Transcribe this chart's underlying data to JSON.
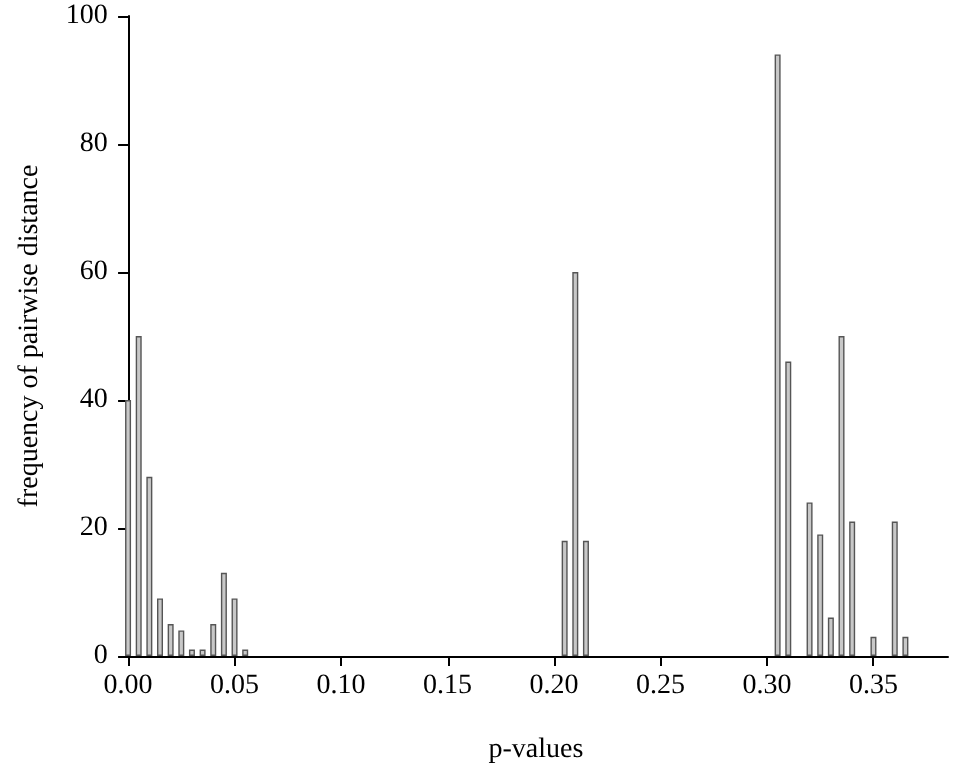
{
  "chart_data": {
    "type": "bar",
    "xlabel": "p-values",
    "ylabel": "frequency of pairwise distance",
    "x": [
      0,
      0.005,
      0.01,
      0.015,
      0.02,
      0.025,
      0.03,
      0.035,
      0.04,
      0.045,
      0.05,
      0.055,
      0.205,
      0.21,
      0.215,
      0.305,
      0.31,
      0.32,
      0.325,
      0.33,
      0.335,
      0.34,
      0.35,
      0.36,
      0.365
    ],
    "values": [
      40,
      50,
      28,
      9,
      5,
      4,
      1,
      1,
      5,
      13,
      9,
      1,
      18,
      60,
      18,
      94,
      46,
      24,
      19,
      6,
      50,
      21,
      3,
      21,
      3
    ],
    "color": "#c8c8c8",
    "xlim": [
      -0.002,
      0.385
    ],
    "xticks": [
      {
        "value": 0,
        "label": "0.00"
      },
      {
        "value": 0.05,
        "label": "0.05"
      },
      {
        "value": 0.1,
        "label": "0.10"
      },
      {
        "value": 0.15,
        "label": "0.15"
      },
      {
        "value": 0.2,
        "label": "0.20"
      },
      {
        "value": 0.25,
        "label": "0.25"
      },
      {
        "value": 0.3,
        "label": "0.30"
      },
      {
        "value": 0.35,
        "label": "0.35"
      }
    ],
    "ylim": [
      0,
      100
    ],
    "yticks": [
      0,
      20,
      40,
      60,
      80,
      100
    ]
  }
}
